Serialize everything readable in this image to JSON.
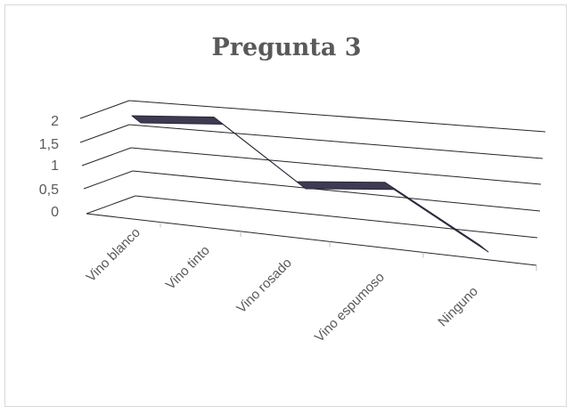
{
  "chart_data": {
    "type": "line",
    "title": "Pregunta 3",
    "categories": [
      "Vino blanco",
      "Vino tinto",
      "Vino rosado",
      "Vino espumoso",
      "Ninguno"
    ],
    "values": [
      2,
      2,
      1,
      1,
      0
    ],
    "y_ticks": [
      "0",
      "0,5",
      "1",
      "1,5",
      "2"
    ],
    "ylim": [
      0,
      2
    ],
    "grid": true,
    "style": "3d-line",
    "colors": {
      "series": "#3e3a52",
      "grid": "#262626",
      "text": "#595959"
    }
  }
}
